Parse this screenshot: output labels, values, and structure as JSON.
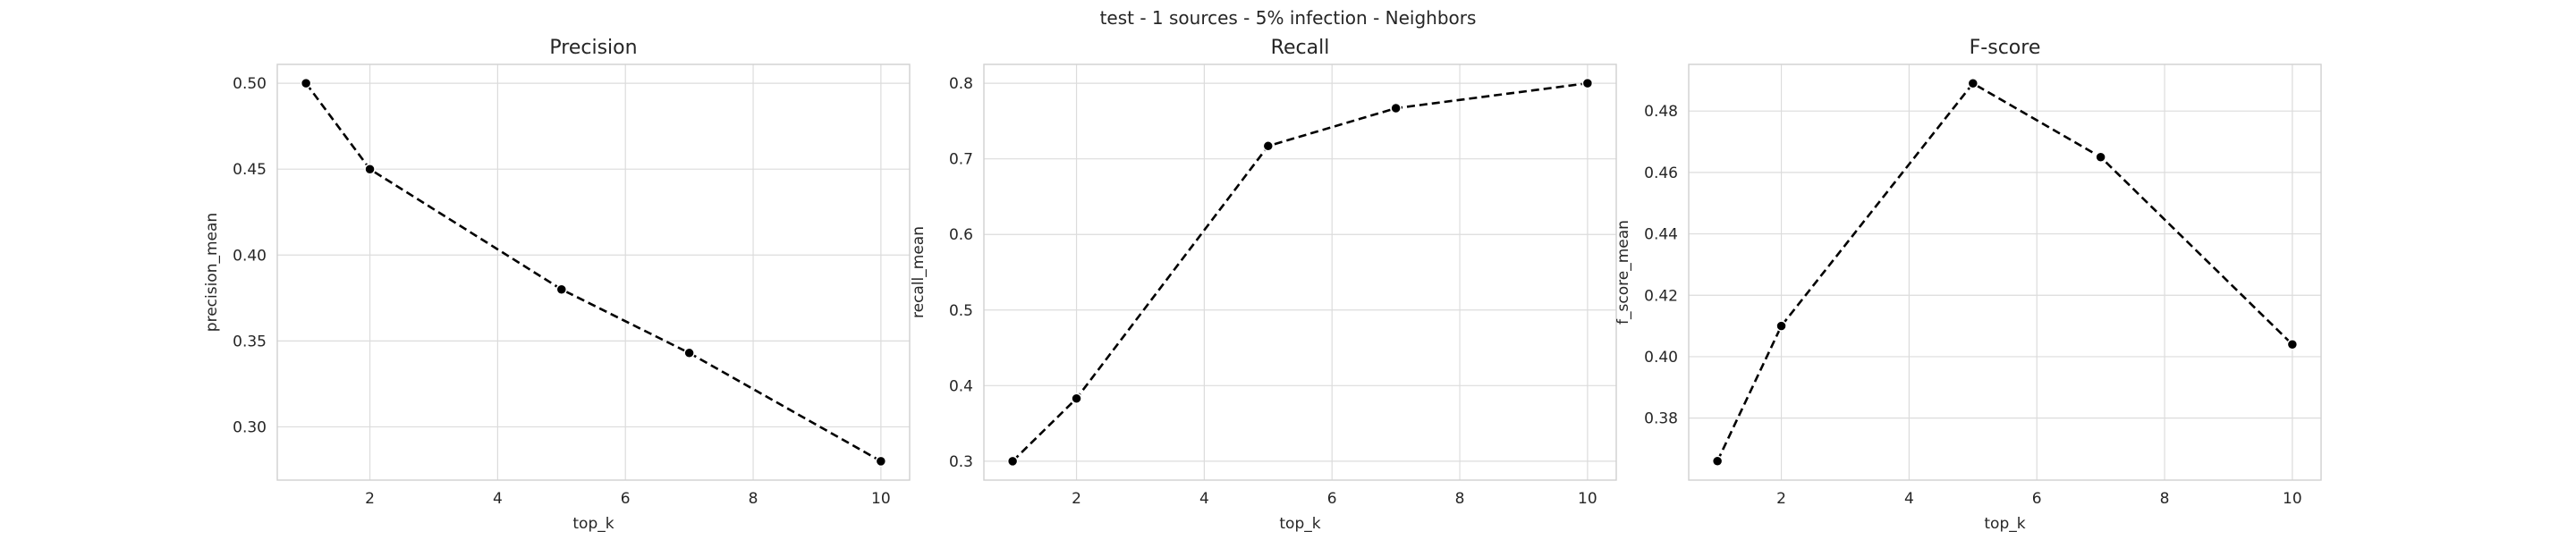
{
  "figure": {
    "suptitle": "test - 1 sources - 5% infection - Neighbors"
  },
  "chart_data": [
    {
      "type": "line",
      "title": "Precision",
      "xlabel": "top_k",
      "ylabel": "precision_mean",
      "x": [
        1,
        2,
        5,
        7,
        10
      ],
      "series": [
        {
          "values": [
            0.5,
            0.45,
            0.38,
            0.343,
            0.28
          ]
        }
      ],
      "xlim": [
        0.55,
        10.45
      ],
      "ylim": [
        0.269,
        0.511
      ],
      "xticks": [
        2,
        4,
        6,
        8,
        10
      ],
      "yticks": [
        0.3,
        0.35,
        0.4,
        0.45,
        0.5
      ],
      "ytick_decimals": 2,
      "grid": true,
      "line_style": "dashed",
      "color": "#000000"
    },
    {
      "type": "line",
      "title": "Recall",
      "xlabel": "top_k",
      "ylabel": "recall_mean",
      "x": [
        1,
        2,
        5,
        7,
        10
      ],
      "series": [
        {
          "values": [
            0.3,
            0.383,
            0.717,
            0.767,
            0.8
          ]
        }
      ],
      "xlim": [
        0.55,
        10.45
      ],
      "ylim": [
        0.275,
        0.825
      ],
      "xticks": [
        2,
        4,
        6,
        8,
        10
      ],
      "yticks": [
        0.3,
        0.4,
        0.5,
        0.6,
        0.7,
        0.8
      ],
      "ytick_decimals": 1,
      "grid": true,
      "line_style": "dashed",
      "color": "#000000"
    },
    {
      "type": "line",
      "title": "F-score",
      "xlabel": "top_k",
      "ylabel": "f_score_mean",
      "x": [
        1,
        2,
        5,
        7,
        10
      ],
      "series": [
        {
          "values": [
            0.366,
            0.41,
            0.489,
            0.465,
            0.404
          ]
        }
      ],
      "xlim": [
        0.55,
        10.45
      ],
      "ylim": [
        0.3598,
        0.4952
      ],
      "xticks": [
        2,
        4,
        6,
        8,
        10
      ],
      "yticks": [
        0.38,
        0.4,
        0.42,
        0.44,
        0.46,
        0.48
      ],
      "ytick_decimals": 2,
      "grid": true,
      "line_style": "dashed",
      "color": "#000000"
    }
  ]
}
